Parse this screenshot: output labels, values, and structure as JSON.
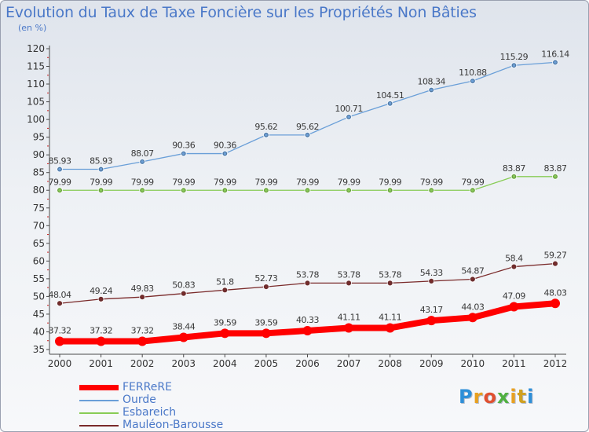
{
  "header": {
    "title": "Evolution du Taux de Taxe Foncière sur les Propriétés Non Bâties",
    "subtitle": "(en %)"
  },
  "logo": {
    "text": "Proxiti",
    "colors": [
      "#2e8fd8",
      "#e8a020",
      "#e05030",
      "#50b040",
      "#e8a020",
      "#d0a020",
      "#2e8fd8"
    ]
  },
  "chart_data": {
    "type": "line",
    "x": [
      "2000",
      "2001",
      "2002",
      "2003",
      "2004",
      "2005",
      "2006",
      "2007",
      "2008",
      "2009",
      "2010",
      "2011",
      "2012"
    ],
    "ylim": [
      35,
      120
    ],
    "yticks": [
      35,
      40,
      45,
      50,
      55,
      60,
      65,
      70,
      75,
      80,
      85,
      90,
      95,
      100,
      105,
      110,
      115,
      120
    ],
    "grid": false,
    "legend_position": "bottom-left",
    "series": [
      {
        "name": "FERReRE",
        "color": "#ff0000",
        "values": [
          37.32,
          37.32,
          37.32,
          38.44,
          39.59,
          39.59,
          40.33,
          41.11,
          41.11,
          43.17,
          44.03,
          47.09,
          48.03
        ],
        "labels": [
          "37.32",
          "37.32",
          "37.32",
          "38.44",
          "39.59",
          "39.59",
          "40.33",
          "41.11",
          "41.11",
          "43.17",
          "44.03",
          "47.09",
          "48.03"
        ]
      },
      {
        "name": "Ourde",
        "color": "#6a9fd8",
        "values": [
          85.93,
          85.93,
          88.07,
          90.36,
          90.36,
          95.62,
          95.62,
          100.71,
          104.51,
          108.34,
          110.88,
          115.29,
          116.14
        ],
        "labels": [
          "85.93",
          "85.93",
          "88.07",
          "90.36",
          "90.36",
          "95.62",
          "95.62",
          "100.71",
          "104.51",
          "108.34",
          "110.88",
          "115.29",
          "116.14"
        ]
      },
      {
        "name": "Esbareich",
        "color": "#88cc55",
        "values": [
          79.99,
          79.99,
          79.99,
          79.99,
          79.99,
          79.99,
          79.99,
          79.99,
          79.99,
          79.99,
          79.99,
          83.87,
          83.87
        ],
        "labels": [
          "79.99",
          "79.99",
          "79.99",
          "79.99",
          "79.99",
          "79.99",
          "79.99",
          "79.99",
          "79.99",
          "79.99",
          "79.99",
          "83.87",
          "83.87"
        ]
      },
      {
        "name": "Mauléon-Barousse",
        "color": "#7a2a2a",
        "values": [
          48.04,
          49.24,
          49.83,
          50.83,
          51.8,
          52.73,
          53.78,
          53.78,
          53.78,
          54.33,
          54.87,
          58.4,
          59.27
        ],
        "labels": [
          "48.04",
          "49.24",
          "49.83",
          "50.83",
          "51.8",
          "52.73",
          "53.78",
          "53.78",
          "53.78",
          "54.33",
          "54.87",
          "58.4",
          "59.27"
        ]
      }
    ]
  }
}
